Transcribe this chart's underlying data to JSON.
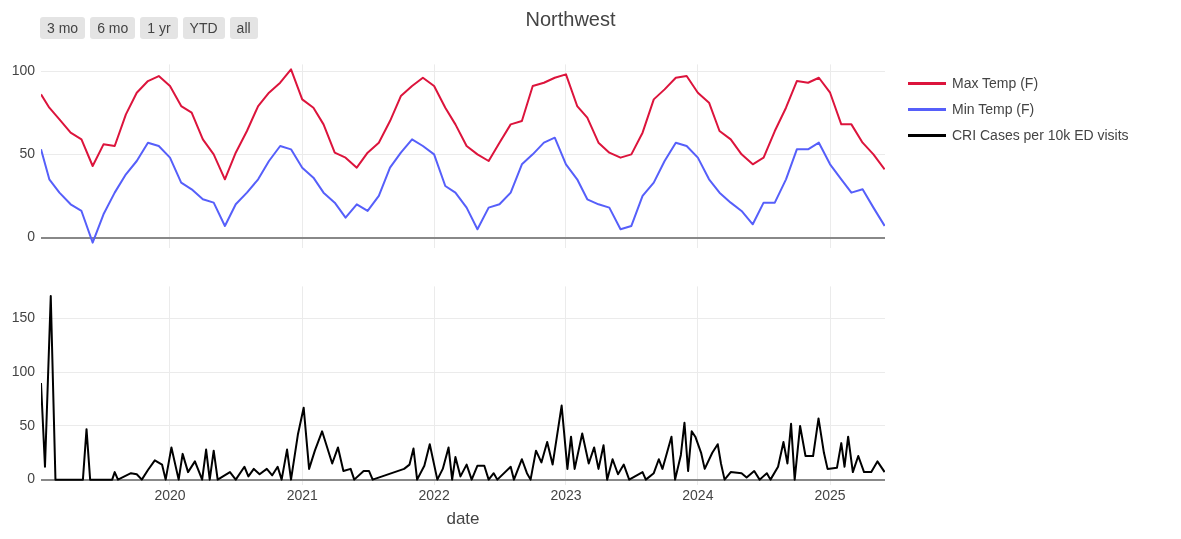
{
  "chart_data": [
    {
      "type": "line",
      "title": "Northwest",
      "annotations": [
        "3 mo",
        "6 mo",
        "1 yr",
        "YTD",
        "all"
      ],
      "x": [
        "2019-01-09",
        "2019-02-01",
        "2019-03-01",
        "2019-04-01",
        "2019-05-01",
        "2019-06-01",
        "2019-07-01",
        "2019-08-01",
        "2019-09-01",
        "2019-10-01",
        "2019-11-01",
        "2019-12-01",
        "2020-01-01",
        "2020-02-01",
        "2020-03-01",
        "2020-04-01",
        "2020-05-01",
        "2020-06-01",
        "2020-07-01",
        "2020-08-01",
        "2020-09-01",
        "2020-10-01",
        "2020-11-01",
        "2020-12-01",
        "2021-01-01",
        "2021-02-01",
        "2021-03-01",
        "2021-04-01",
        "2021-05-01",
        "2021-06-01",
        "2021-07-01",
        "2021-08-01",
        "2021-09-01",
        "2021-10-01",
        "2021-11-01",
        "2021-12-01",
        "2022-01-01",
        "2022-02-01",
        "2022-03-01",
        "2022-04-01",
        "2022-05-01",
        "2022-06-01",
        "2022-07-01",
        "2022-08-01",
        "2022-09-01",
        "2022-10-01",
        "2022-11-01",
        "2022-12-01",
        "2023-01-01",
        "2023-02-01",
        "2023-03-01",
        "2023-04-01",
        "2023-05-01",
        "2023-06-01",
        "2023-07-01",
        "2023-08-01",
        "2023-09-01",
        "2023-10-01",
        "2023-11-01",
        "2023-12-01",
        "2024-01-01",
        "2024-02-01",
        "2024-03-01",
        "2024-04-01",
        "2024-05-01",
        "2024-06-01",
        "2024-07-01",
        "2024-08-01",
        "2024-09-01",
        "2024-10-01",
        "2024-11-01",
        "2024-12-01",
        "2025-01-01",
        "2025-02-01",
        "2025-03-01",
        "2025-04-01",
        "2025-05-01",
        "2025-06-01"
      ],
      "series": [
        {
          "name": "Max Temp (F)",
          "color": "#dc143c",
          "values": [
            86,
            78,
            71,
            63,
            59,
            43,
            56,
            55,
            74,
            87,
            94,
            97,
            91,
            79,
            75,
            59,
            50,
            35,
            51,
            64,
            79,
            87,
            93,
            101,
            83,
            78,
            68,
            51,
            48,
            42,
            51,
            57,
            70,
            85,
            91,
            96,
            91,
            78,
            68,
            55,
            50,
            46,
            57,
            68,
            70,
            91,
            93,
            96,
            98,
            79,
            72,
            57,
            51,
            48,
            50,
            63,
            83,
            89,
            96,
            97,
            87,
            81,
            64,
            59,
            50,
            44,
            48,
            64,
            78,
            94,
            93,
            96,
            87,
            68,
            68,
            57,
            50,
            41
          ]
        },
        {
          "name": "Min Temp (F)",
          "color": "#565ffa",
          "values": [
            53,
            35,
            27,
            20,
            16,
            -3,
            14,
            27,
            38,
            46,
            57,
            55,
            48,
            33,
            29,
            23,
            21,
            7,
            20,
            27,
            35,
            46,
            55,
            53,
            42,
            36,
            27,
            21,
            12,
            20,
            16,
            25,
            42,
            51,
            59,
            55,
            50,
            31,
            27,
            18,
            5,
            18,
            20,
            27,
            44,
            50,
            57,
            60,
            44,
            35,
            23,
            20,
            18,
            5,
            7,
            25,
            33,
            46,
            57,
            55,
            48,
            35,
            27,
            21,
            16,
            8,
            21,
            21,
            35,
            53,
            53,
            57,
            44,
            35,
            27,
            29,
            18,
            7
          ]
        }
      ],
      "ylim": [
        -6,
        104
      ],
      "yticks": [
        0,
        50,
        100
      ],
      "xlim": [
        "2019-01-09",
        "2025-06-02"
      ],
      "xticks": [
        "2020",
        "2021",
        "2022",
        "2023",
        "2024",
        "2025"
      ],
      "grid": true,
      "legend": "top right",
      "tick_labels": "y"
    },
    {
      "type": "line",
      "xlabel": "date",
      "x": [
        "2019-01-09",
        "2019-01-20",
        "2019-02-05",
        "2019-02-18",
        "2019-05-05",
        "2019-05-15",
        "2019-05-25",
        "2019-07-25",
        "2019-08-01",
        "2019-08-10",
        "2019-09-15",
        "2019-10-01",
        "2019-10-15",
        "2019-11-01",
        "2019-11-20",
        "2019-12-10",
        "2019-12-20",
        "2020-01-05",
        "2020-01-25",
        "2020-02-05",
        "2020-02-20",
        "2020-03-10",
        "2020-03-30",
        "2020-04-10",
        "2020-04-20",
        "2020-05-01",
        "2020-05-12",
        "2020-06-15",
        "2020-07-01",
        "2020-07-25",
        "2020-08-05",
        "2020-08-20",
        "2020-09-05",
        "2020-09-25",
        "2020-10-10",
        "2020-10-25",
        "2020-11-05",
        "2020-11-20",
        "2020-12-01",
        "2020-12-20",
        "2021-01-05",
        "2021-01-20",
        "2021-02-05",
        "2021-02-25",
        "2021-03-25",
        "2021-04-10",
        "2021-04-25",
        "2021-05-15",
        "2021-05-25",
        "2021-06-20",
        "2021-07-05",
        "2021-07-15",
        "2021-10-10",
        "2021-10-25",
        "2021-11-05",
        "2021-11-15",
        "2021-12-05",
        "2021-12-20",
        "2022-01-10",
        "2022-01-25",
        "2022-02-10",
        "2022-02-20",
        "2022-03-01",
        "2022-03-15",
        "2022-04-01",
        "2022-04-15",
        "2022-05-01",
        "2022-05-20",
        "2022-06-01",
        "2022-06-15",
        "2022-06-25",
        "2022-08-01",
        "2022-08-10",
        "2022-09-01",
        "2022-09-15",
        "2022-09-25",
        "2022-10-10",
        "2022-10-25",
        "2022-11-10",
        "2022-11-25",
        "2022-12-20",
        "2023-01-05",
        "2023-01-15",
        "2023-01-25",
        "2023-02-15",
        "2023-03-05",
        "2023-03-20",
        "2023-04-01",
        "2023-04-15",
        "2023-04-25",
        "2023-05-10",
        "2023-05-25",
        "2023-06-10",
        "2023-06-25",
        "2023-08-01",
        "2023-08-10",
        "2023-09-01",
        "2023-09-15",
        "2023-09-25",
        "2023-10-20",
        "2023-10-30",
        "2023-11-15",
        "2023-11-25",
        "2023-12-05",
        "2023-12-15",
        "2023-12-25",
        "2024-01-10",
        "2024-01-20",
        "2024-02-10",
        "2024-02-25",
        "2024-03-05",
        "2024-03-15",
        "2024-04-01",
        "2024-05-01",
        "2024-05-15",
        "2024-06-05",
        "2024-06-20",
        "2024-07-10",
        "2024-07-20",
        "2024-08-10",
        "2024-08-25",
        "2024-09-05",
        "2024-09-15",
        "2024-09-25",
        "2024-10-10",
        "2024-10-25",
        "2024-11-15",
        "2024-11-30",
        "2024-12-15",
        "2024-12-25",
        "2025-01-20",
        "2025-02-01",
        "2025-02-10",
        "2025-02-20",
        "2025-03-05",
        "2025-03-20",
        "2025-04-05",
        "2025-04-25",
        "2025-05-12",
        "2025-06-01"
      ],
      "series": [
        {
          "name": "CRI Cases per 10k ED visits",
          "color": "#000000",
          "values": [
            90,
            12,
            171,
            0,
            0,
            47,
            0,
            0,
            7,
            0,
            6,
            5,
            0,
            9,
            18,
            14,
            0,
            30,
            0,
            24,
            7,
            17,
            0,
            28,
            0,
            27,
            0,
            7,
            0,
            12,
            3,
            10,
            5,
            10,
            4,
            12,
            0,
            28,
            0,
            42,
            67,
            10,
            27,
            45,
            15,
            30,
            8,
            10,
            0,
            8,
            8,
            0,
            10,
            14,
            29,
            0,
            13,
            33,
            0,
            10,
            30,
            0,
            21,
            3,
            14,
            0,
            13,
            13,
            0,
            6,
            0,
            12,
            0,
            19,
            6,
            0,
            27,
            16,
            35,
            14,
            69,
            10,
            40,
            10,
            43,
            15,
            30,
            10,
            32,
            0,
            19,
            5,
            14,
            0,
            7,
            0,
            6,
            19,
            10,
            40,
            0,
            23,
            53,
            8,
            45,
            40,
            25,
            10,
            25,
            33,
            15,
            0,
            7,
            6,
            2,
            8,
            0,
            6,
            0,
            12,
            35,
            15,
            52,
            0,
            50,
            22,
            22,
            57,
            25,
            10,
            11,
            34,
            12,
            40,
            7,
            22,
            7,
            7,
            17,
            7
          ]
        }
      ],
      "ylim": [
        -5,
        180
      ],
      "yticks": [
        0,
        50,
        100,
        150
      ],
      "xlim": [
        "2019-01-09",
        "2025-06-02"
      ],
      "xticks": [
        "2020",
        "2021",
        "2022",
        "2023",
        "2024",
        "2025"
      ],
      "grid": true,
      "legend": "top right"
    }
  ]
}
